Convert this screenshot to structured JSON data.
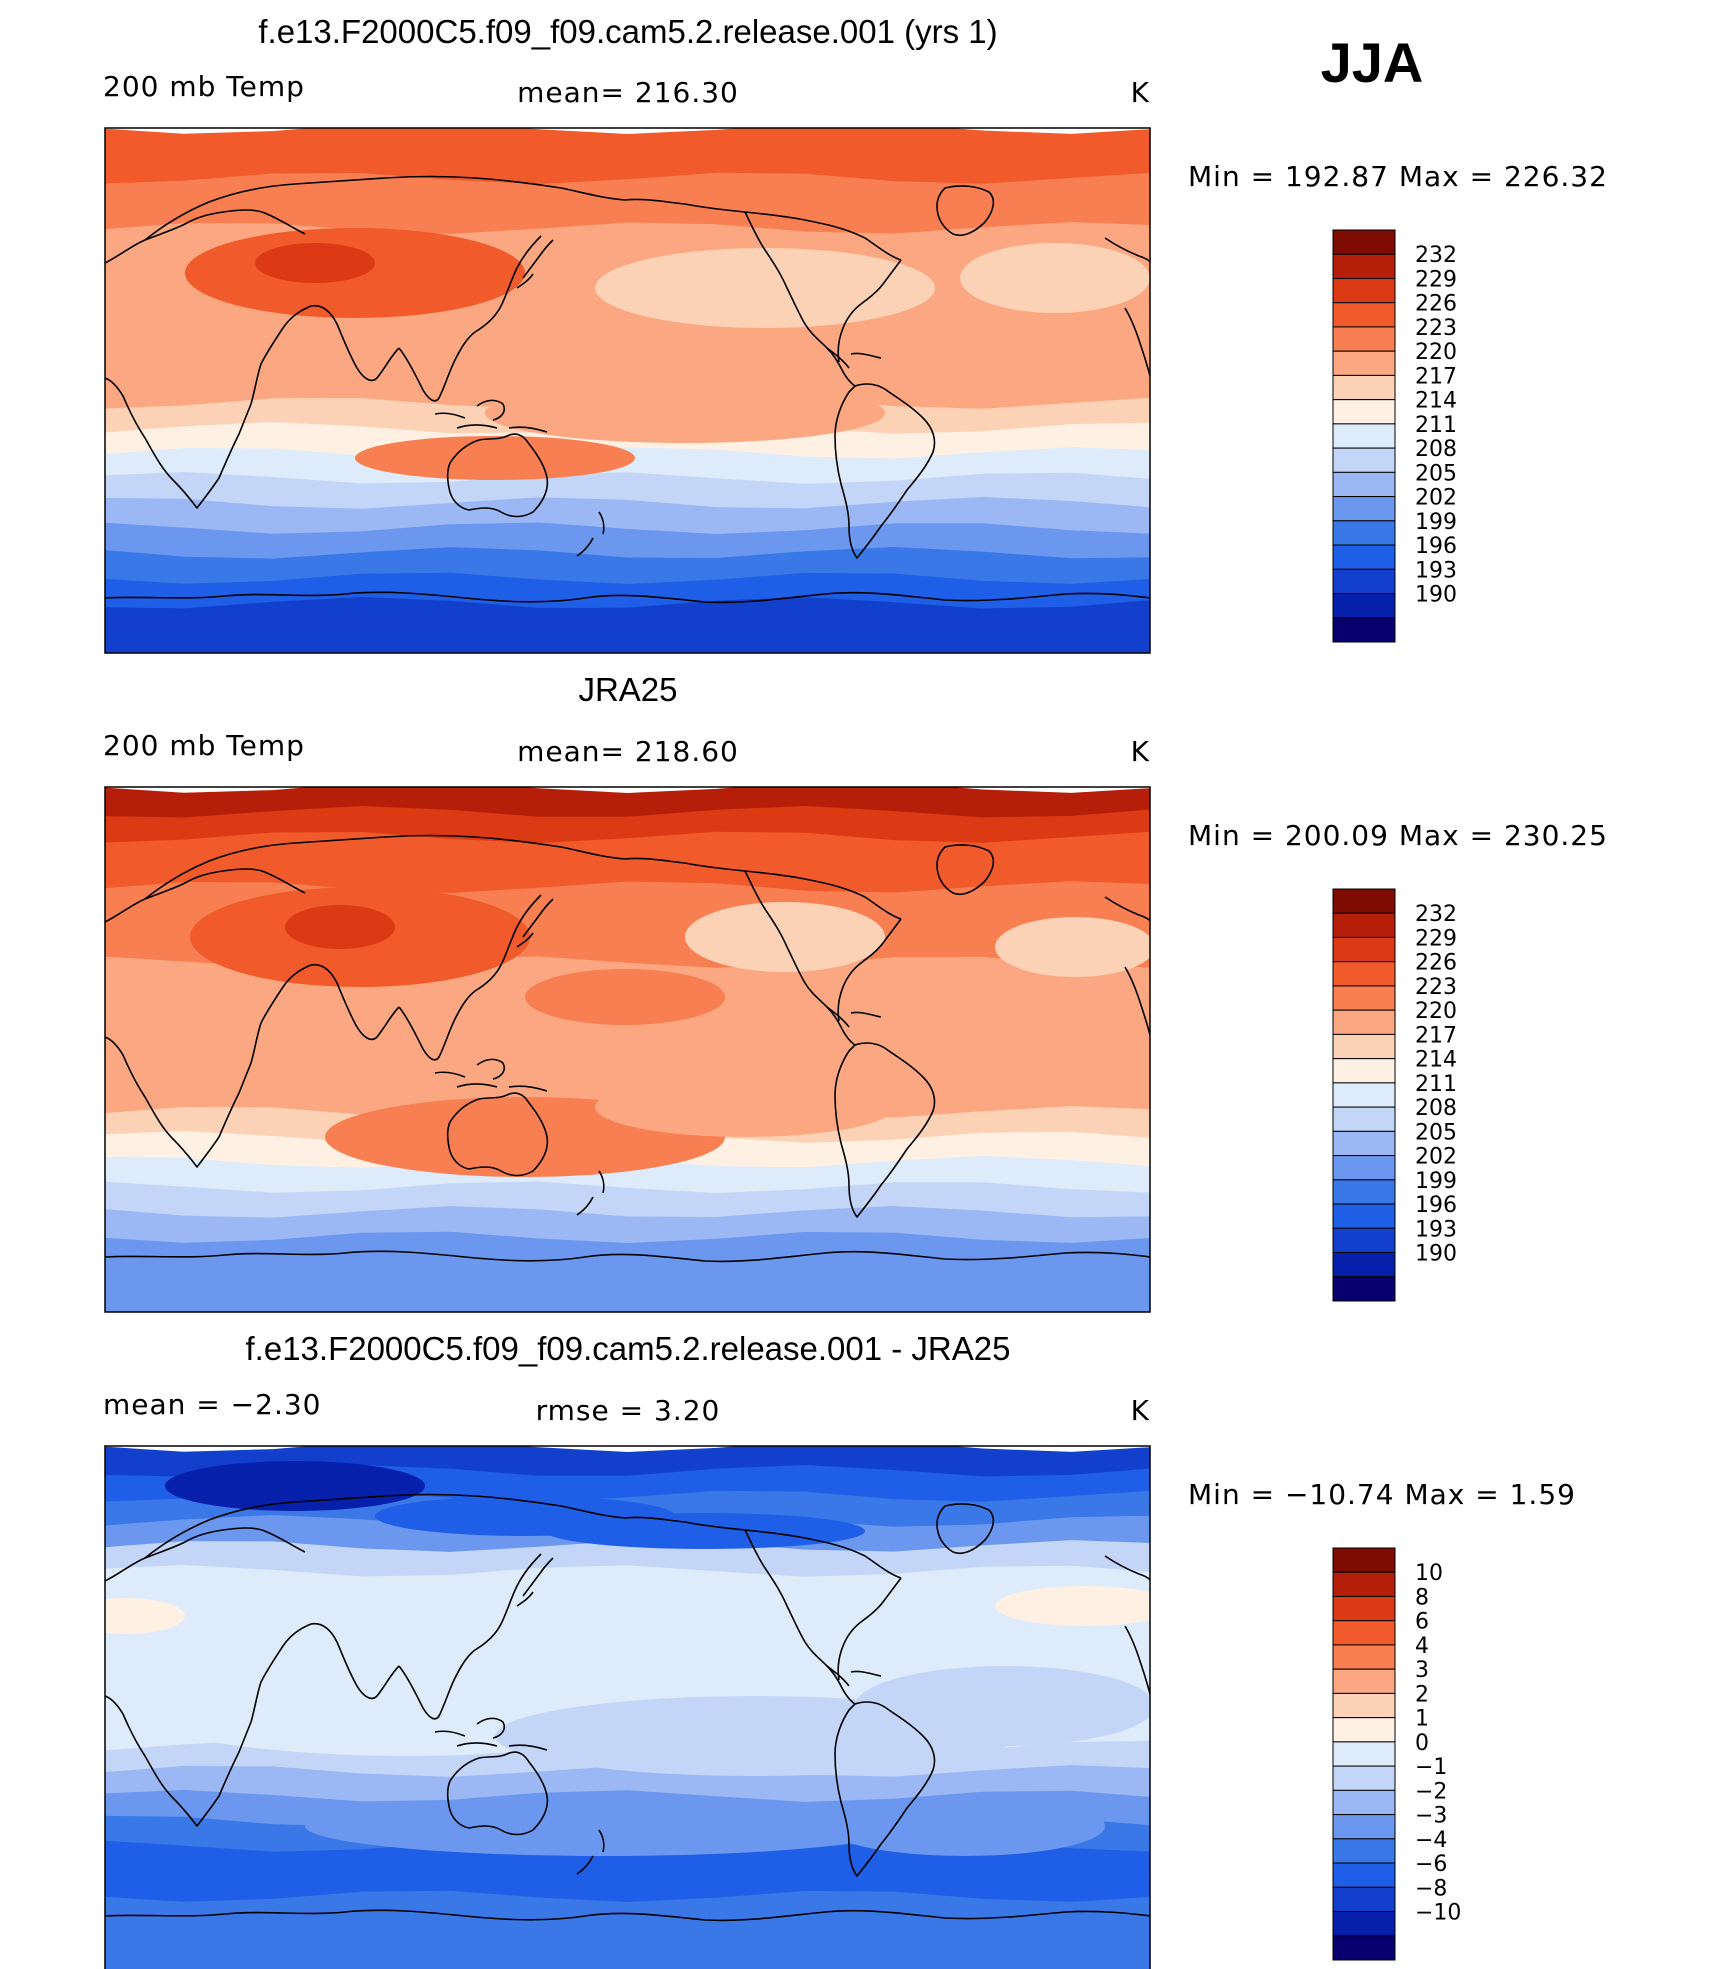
{
  "season": "JJA",
  "colors": {
    "abs": [
      "#08006e",
      "#0620ab",
      "#1240cc",
      "#1f5ee6",
      "#3a78e8",
      "#6b98ee",
      "#9bb8f4",
      "#c4d6f8",
      "#deebfb",
      "#fff0e4",
      "#fcd2b6",
      "#fba882",
      "#f87f52",
      "#f15a2a",
      "#dc3a14",
      "#b51e08",
      "#7e0c03"
    ],
    "diff": [
      "#08006e",
      "#0620ab",
      "#1240cc",
      "#1f5ee6",
      "#3a78e8",
      "#6b98ee",
      "#9bb8f4",
      "#c4d6f8",
      "#deebfb",
      "#fff0e4",
      "#fcd2b6",
      "#fba882",
      "#f87f52",
      "#f15a2a",
      "#dc3a14",
      "#b51e08",
      "#7e0c03"
    ],
    "coast": "#000000"
  },
  "panels": [
    {
      "id": "model",
      "title": "f.e13.F2000C5.f09_f09.cam5.2.release.001 (yrs 1)",
      "left_label": "200 mb Temp",
      "center_label": "mean= 216.30",
      "units": "K",
      "minmax": "Min  =  192.87  Max  =  226.32",
      "colorbar_labels": [
        "232",
        "229",
        "226",
        "223",
        "220",
        "217",
        "214",
        "211",
        "208",
        "205",
        "202",
        "199",
        "196",
        "193",
        "190"
      ]
    },
    {
      "id": "obs",
      "title": "JRA25",
      "left_label": "200 mb Temp",
      "center_label": "mean= 218.60",
      "units": "K",
      "minmax": "Min  =  200.09  Max  =  230.25",
      "colorbar_labels": [
        "232",
        "229",
        "226",
        "223",
        "220",
        "217",
        "214",
        "211",
        "208",
        "205",
        "202",
        "199",
        "196",
        "193",
        "190"
      ]
    },
    {
      "id": "diff",
      "title": "f.e13.F2000C5.f09_f09.cam5.2.release.001 - JRA25",
      "left_label": "mean =    −2.30",
      "center_label": "rmse =     3.20",
      "units": "K",
      "minmax": "Min  =  −10.74  Max  =     1.59",
      "colorbar_labels": [
        "10",
        "8",
        "6",
        "4",
        "3",
        "2",
        "1",
        "0",
        "−1",
        "−2",
        "−3",
        "−4",
        "−6",
        "−8",
        "−10"
      ]
    }
  ]
}
